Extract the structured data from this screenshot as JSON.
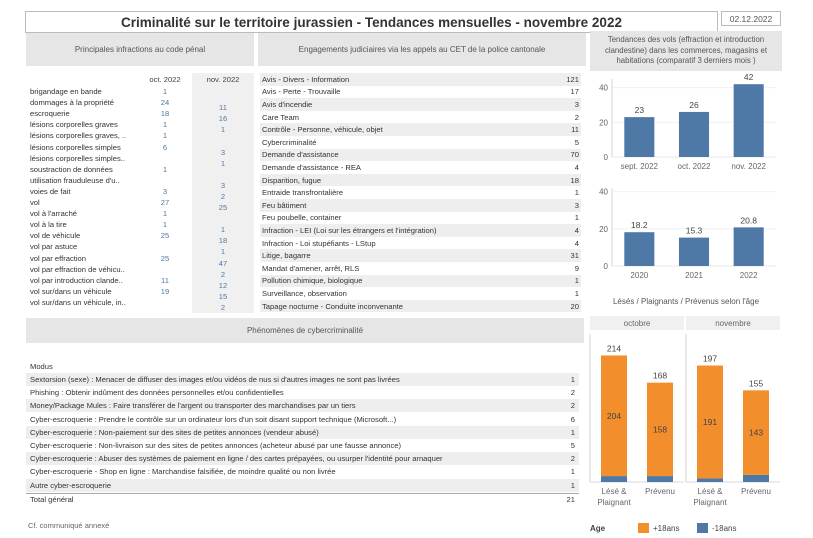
{
  "header": {
    "title": "Criminalité sur le territoire jurassien - Tendances mensuelles - novembre 2022",
    "date": "02.12.2022"
  },
  "infractions": {
    "title": "Principales infractions au code pénal",
    "col1": "oct. 2022",
    "col2": "nov. 2022",
    "rows": [
      {
        "label": "brigandage en bande",
        "oct": "1",
        "nov": ""
      },
      {
        "label": "dommages à la propriété",
        "oct": "24",
        "nov": "11"
      },
      {
        "label": "escroquerie",
        "oct": "18",
        "nov": "16"
      },
      {
        "label": "lésions corporelles graves",
        "oct": "1",
        "nov": "1"
      },
      {
        "label": "lésions corporelles graves, ..",
        "oct": "1",
        "nov": ""
      },
      {
        "label": "lésions corporelles simples",
        "oct": "6",
        "nov": "3"
      },
      {
        "label": "lésions corporelles simples..",
        "oct": "",
        "nov": "1"
      },
      {
        "label": "soustraction de données",
        "oct": "1",
        "nov": ""
      },
      {
        "label": "utilisation frauduleuse d'u..",
        "oct": "",
        "nov": "3"
      },
      {
        "label": "voies de fait",
        "oct": "3",
        "nov": "2"
      },
      {
        "label": "vol",
        "oct": "27",
        "nov": "25"
      },
      {
        "label": "vol à l'arraché",
        "oct": "1",
        "nov": ""
      },
      {
        "label": "vol à la tire",
        "oct": "1",
        "nov": "1"
      },
      {
        "label": "vol de véhicule",
        "oct": "25",
        "nov": "18"
      },
      {
        "label": "vol par astuce",
        "oct": "",
        "nov": "1"
      },
      {
        "label": "vol par effraction",
        "oct": "25",
        "nov": "47"
      },
      {
        "label": "vol par effraction de véhicu..",
        "oct": "",
        "nov": "2"
      },
      {
        "label": "vol par introduction clande..",
        "oct": "11",
        "nov": "12"
      },
      {
        "label": "vol sur/dans un véhicule",
        "oct": "19",
        "nov": "15"
      },
      {
        "label": "vol sur/dans un véhicule, in..",
        "oct": "",
        "nov": "2"
      }
    ]
  },
  "engagements": {
    "title": "Engagements judiciaires via les appels au CET de la police cantonale",
    "rows": [
      {
        "label": "Avis - Divers - Information",
        "value": "121"
      },
      {
        "label": "Avis - Perte - Trouvaille",
        "value": "17"
      },
      {
        "label": "Avis d'incendie",
        "value": "3"
      },
      {
        "label": "Care Team",
        "value": "2"
      },
      {
        "label": "Contrôle - Personne, véhicule, objet",
        "value": "11"
      },
      {
        "label": "Cybercriminalité",
        "value": "5"
      },
      {
        "label": "Demande d'assistance",
        "value": "70"
      },
      {
        "label": "Demande d'assistance - REA",
        "value": "4"
      },
      {
        "label": "Disparition, fugue",
        "value": "18"
      },
      {
        "label": "Entraide transfrontalière",
        "value": "1"
      },
      {
        "label": "Feu bâtiment",
        "value": "3"
      },
      {
        "label": "Feu poubelle, container",
        "value": "1"
      },
      {
        "label": "Infraction - LEI (Loi sur les étrangers et l'intégration)",
        "value": "4"
      },
      {
        "label": "Infraction - Loi stupéfiants - LStup",
        "value": "4"
      },
      {
        "label": "Litige, bagarre",
        "value": "31"
      },
      {
        "label": "Mandat d'amener, arrêt, RLS",
        "value": "9"
      },
      {
        "label": "Pollution chimique, biologique",
        "value": "1"
      },
      {
        "label": "Surveillance, observation",
        "value": "1"
      },
      {
        "label": "Tapage nocturne - Conduite inconvenante",
        "value": "20"
      }
    ]
  },
  "cyber": {
    "title": "Phénomènes de cybercriminalité",
    "modus_label": "Modus",
    "rows": [
      {
        "label": "Sextorsion (sexe) : Menacer de diffuser des images et/ou vidéos de nus si d'autres images ne sont pas livrées",
        "value": "1"
      },
      {
        "label": "Phishing : Obtenir indûment des données personnelles et/ou confidentielles",
        "value": "2"
      },
      {
        "label": "Money/Package Mules : Faire transférer de l'argent ou transporter des marchandises par un tiers",
        "value": "2"
      },
      {
        "label": "Cyber-escroquerie : Prendre le contrôle sur un ordinateur lors d'un soit disant support technique (Microsoft...)",
        "value": "6"
      },
      {
        "label": "Cyber-escroquerie : Non-paiement sur des sites de petites annonces (vendeur abusé)",
        "value": "1"
      },
      {
        "label": "Cyber-escroquerie : Non-livraison sur des sites de petites annonces (acheteur abusé par une fausse annonce)",
        "value": "5"
      },
      {
        "label": "Cyber-escroquerie : Abuser des systèmes de paiement en ligne / des cartes prépayées, ou usurper l'identité pour arnaquer",
        "value": "2"
      },
      {
        "label": "Cyber-escroquerie - Shop en ligne : Marchandise falsifiée, de moindre qualité ou non livrée",
        "value": "1"
      },
      {
        "label": "Autre cyber-escroquerie",
        "value": "1"
      }
    ],
    "total_label": "Total général",
    "total_value": "21"
  },
  "footer_note": "Cf. communiqué annexé",
  "vols": {
    "title": "Tendances des vols (effraction et introduction clandestine) dans les commerces, magasins et habitations (comparatif 3 derniers mois )",
    "color": "#4e79a7"
  },
  "chart_data": [
    {
      "type": "bar",
      "categories": [
        "sept. 2022",
        "oct. 2022",
        "nov. 2022"
      ],
      "values": [
        23,
        26,
        42
      ],
      "ylim": [
        0,
        45
      ],
      "yticks": [
        0,
        20,
        40
      ],
      "grid": true
    },
    {
      "type": "bar",
      "categories": [
        "2020",
        "2021",
        "2022"
      ],
      "values": [
        18.2,
        15.3,
        20.8
      ],
      "ylim": [
        0,
        42
      ],
      "yticks": [
        0,
        20,
        40
      ],
      "grid": true
    },
    {
      "type": "bar",
      "title": "Lésés / Plaignants / Prévenus selon l'âge",
      "panels": [
        "octobre",
        "novembre"
      ],
      "categories": [
        "Lésé & Plaignant",
        "Prévenu"
      ],
      "series": [
        {
          "name": "+18ans",
          "color": "#f28e2b",
          "values": [
            [
              204,
              158
            ],
            [
              191,
              143
            ]
          ]
        },
        {
          "name": "-18ans",
          "color": "#4e79a7",
          "values": [
            [
              10,
              10
            ],
            [
              6,
              12
            ]
          ]
        }
      ],
      "totals": [
        [
          214,
          168
        ],
        [
          197,
          155
        ]
      ],
      "ylim": [
        0,
        230
      ],
      "stacked": true
    }
  ],
  "age_legend": {
    "title": "Age",
    "items": [
      {
        "label": "+18ans",
        "color": "#f28e2b"
      },
      {
        "label": "-18ans",
        "color": "#4e79a7"
      }
    ]
  }
}
